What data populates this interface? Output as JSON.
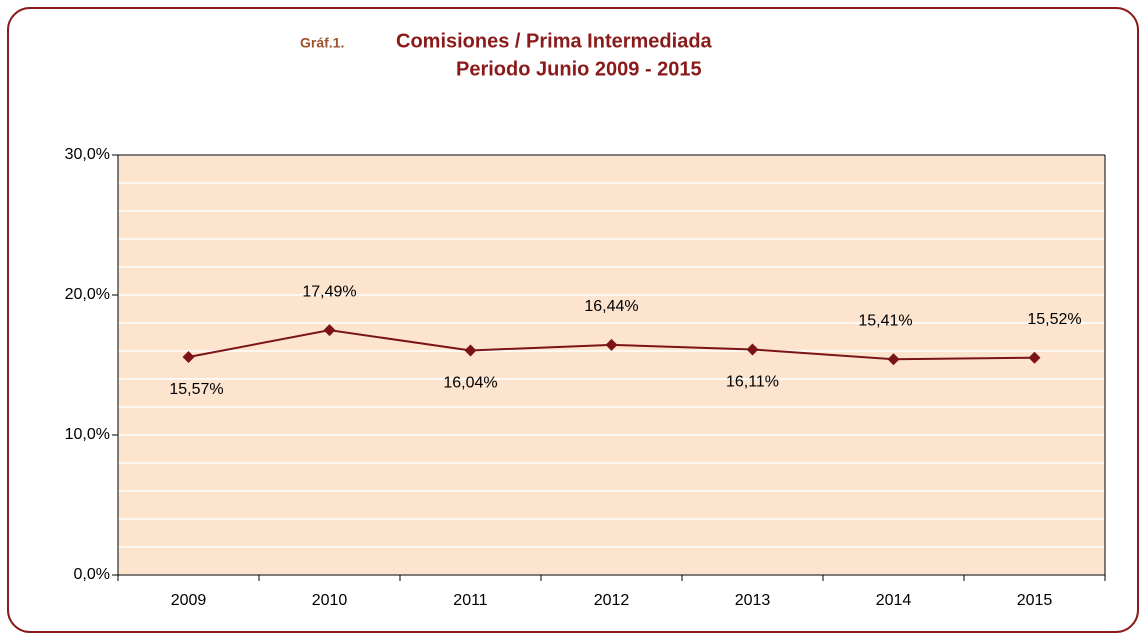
{
  "chart_data": {
    "type": "line",
    "title_prefix": "Gráf.1.",
    "title": "Comisiones  / Prima Intermediada",
    "subtitle": "Periodo Junio 2009  - 2015",
    "categories": [
      "2009",
      "2010",
      "2011",
      "2012",
      "2013",
      "2014",
      "2015"
    ],
    "series": [
      {
        "name": "Comisiones / Prima Intermediada",
        "color": "#7b1417",
        "values": [
          15.57,
          17.49,
          16.04,
          16.44,
          16.11,
          15.41,
          15.52
        ],
        "value_labels": [
          "15,57%",
          "17,49%",
          "16,04%",
          "16,44%",
          "16,11%",
          "15,41%",
          "15,52%"
        ]
      }
    ],
    "ylim": [
      0,
      30
    ],
    "yticks": [
      {
        "value": 0,
        "label": "0,0%"
      },
      {
        "value": 10,
        "label": "10,0%"
      },
      {
        "value": 20,
        "label": "20,0%"
      },
      {
        "value": 30,
        "label": "30,0%"
      }
    ],
    "minor_yticks": [
      2,
      4,
      6,
      8,
      12,
      14,
      16,
      18,
      22,
      24,
      26,
      28
    ],
    "grid": true
  }
}
